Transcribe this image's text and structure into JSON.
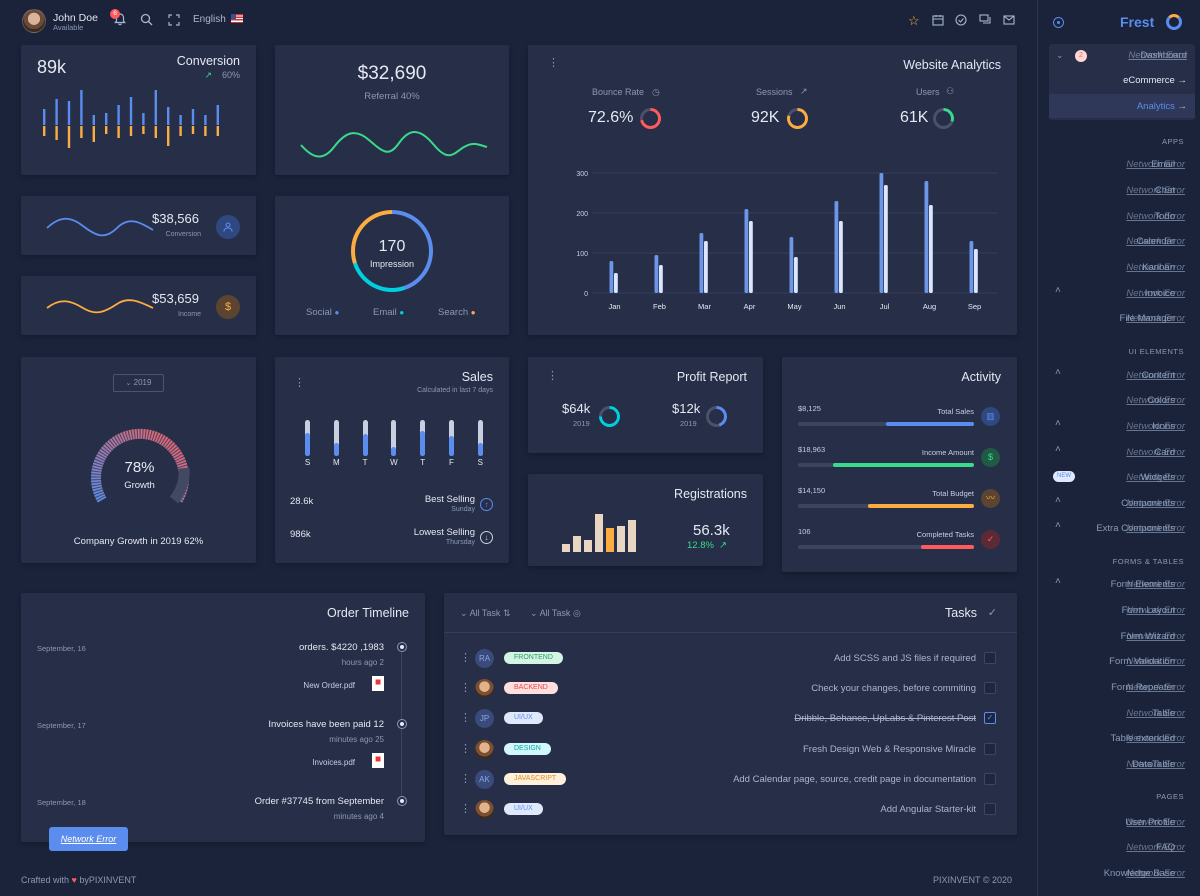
{
  "header": {
    "user_name": "John Doe",
    "user_status": "Available",
    "notification_count": "6",
    "language": "English"
  },
  "conversion": {
    "value": "89k",
    "label": "Conversion",
    "change": "60%"
  },
  "referral": {
    "value": "$32,690",
    "label": "Referral 40%"
  },
  "conversion_mini": {
    "value": "$38,566",
    "label": "Conversion"
  },
  "income_mini": {
    "value": "$53,659",
    "label": "Income"
  },
  "impression": {
    "value": "170",
    "label": "Impression",
    "legend": [
      "Social",
      "Email",
      "Search"
    ]
  },
  "website_analytics": {
    "title": "Website Analytics",
    "stats": [
      {
        "label": "Bounce Rate",
        "value": "72.6%",
        "ring_color": "#ff5b5c"
      },
      {
        "label": "Sessions",
        "value": "92K",
        "ring_color": "#fdac41"
      },
      {
        "label": "Users",
        "value": "61K",
        "ring_color": "#39da8a"
      }
    ]
  },
  "chart_data": {
    "type": "bar",
    "categories": [
      "Jan",
      "Feb",
      "Mar",
      "Apr",
      "May",
      "Jun",
      "Jul",
      "Aug",
      "Sep"
    ],
    "series": [
      {
        "values": [
          80,
          95,
          150,
          210,
          140,
          230,
          300,
          280,
          130
        ]
      },
      {
        "values": [
          50,
          70,
          130,
          180,
          90,
          180,
          270,
          220,
          110
        ]
      }
    ],
    "ylim": [
      0,
      300
    ],
    "yticks": [
      "0",
      "100",
      "200",
      "300"
    ],
    "grid": true
  },
  "growth": {
    "year": "2019",
    "percent": "78%",
    "label": "Growth",
    "caption": "Company Growth in 2019 62%"
  },
  "sales": {
    "title": "Sales",
    "subtitle": "Calculated in last 7 days",
    "days": [
      "S",
      "M",
      "T",
      "W",
      "T",
      "F",
      "S"
    ],
    "day_levels": [
      0.65,
      0.35,
      0.6,
      0.25,
      0.7,
      0.55,
      0.35
    ],
    "best_value": "28.6k",
    "best_label": "Best Selling",
    "best_sub": "Sunday",
    "lowest_value": "986k",
    "lowest_label": "Lowest Selling",
    "lowest_sub": "Thursday"
  },
  "profit": {
    "title": "Profit Report",
    "items": [
      {
        "value": "$64k",
        "year": "2019"
      },
      {
        "value": "$12k",
        "year": "2019"
      }
    ]
  },
  "registrations": {
    "title": "Registrations",
    "value": "56.3k",
    "change": "12.8%"
  },
  "activity": {
    "title": "Activity",
    "items": [
      {
        "value": "$8,125",
        "label": "Total Sales",
        "level": 0.5,
        "color": "#5a8dee"
      },
      {
        "value": "$18,963",
        "label": "Income Amount",
        "level": 0.8,
        "color": "#39da8a"
      },
      {
        "value": "$14,150",
        "label": "Total Budget",
        "level": 0.6,
        "color": "#fdac41"
      },
      {
        "value": "106",
        "label": "Completed Tasks",
        "level": 0.3,
        "color": "#ff5b5c"
      }
    ]
  },
  "timeline": {
    "title": "Order Timeline",
    "items": [
      {
        "date": "September, 16",
        "title": "orders. $4220 ,1983",
        "time": "hours ago 2",
        "file": "New Order.pdf"
      },
      {
        "date": "September, 17",
        "title": "Invoices have been paid 12",
        "time": "minutes ago 25",
        "file": "Invoices.pdf"
      },
      {
        "date": "September, 18",
        "title": "Order #37745 from September",
        "time": "minutes ago 4",
        "file": ""
      }
    ],
    "network_error": "Network Error"
  },
  "tasks": {
    "title": "Tasks",
    "filter1": "All Task",
    "filter2": "All Task",
    "rows": [
      {
        "avatar": "RA",
        "tag": "FRONTEND",
        "text": "Add SCSS and JS files if required",
        "checked": false
      },
      {
        "avatar": "",
        "tag": "BACKEND",
        "text": "Check your changes, before commiting",
        "checked": false
      },
      {
        "avatar": "JP",
        "tag": "UI/UX",
        "text": "Dribble, Behance, UpLabs & Pinterest Post",
        "checked": true
      },
      {
        "avatar": "",
        "tag": "DESIGN",
        "text": "Fresh Design Web & Responsive Miracle",
        "checked": false
      },
      {
        "avatar": "AK",
        "tag": "JAVASCRIPT",
        "text": "Add Calendar page, source, credit page in documentation",
        "checked": false
      },
      {
        "avatar": "",
        "tag": "UI/UX",
        "text": "Add Angular Starter-kit",
        "checked": false
      }
    ]
  },
  "footer": {
    "left_a": "Crafted with",
    "left_b": "byPIXINVENT",
    "right": "PIXINVENT © 2020"
  },
  "sidebar": {
    "brand": "Frest",
    "dashboard_badge": "2",
    "dashboard_label": "Dashboard",
    "ecommerce": "eCommerce",
    "analytics": "Analytics",
    "apps_header": "APPS",
    "ui_header": "UI ELEMENTS",
    "forms_header": "FORMS & TABLES",
    "pages_header": "PAGES",
    "new_badge": "NEW",
    "error_text": "Network Error",
    "items": [
      "Email",
      "Chat",
      "Todo",
      "Calendar",
      "Kanban",
      "Invoice",
      "File Manager",
      "Content",
      "Colors",
      "Icons",
      "Card",
      "Widgets",
      "Components",
      "Extra Components",
      "Form Elements",
      "Form Layout",
      "Form Wizard",
      "Form Validation",
      "Form Repeater",
      "Table",
      "Table extended",
      "DataTable",
      "User Profile",
      "FAQ",
      "Knowledge Base"
    ]
  }
}
